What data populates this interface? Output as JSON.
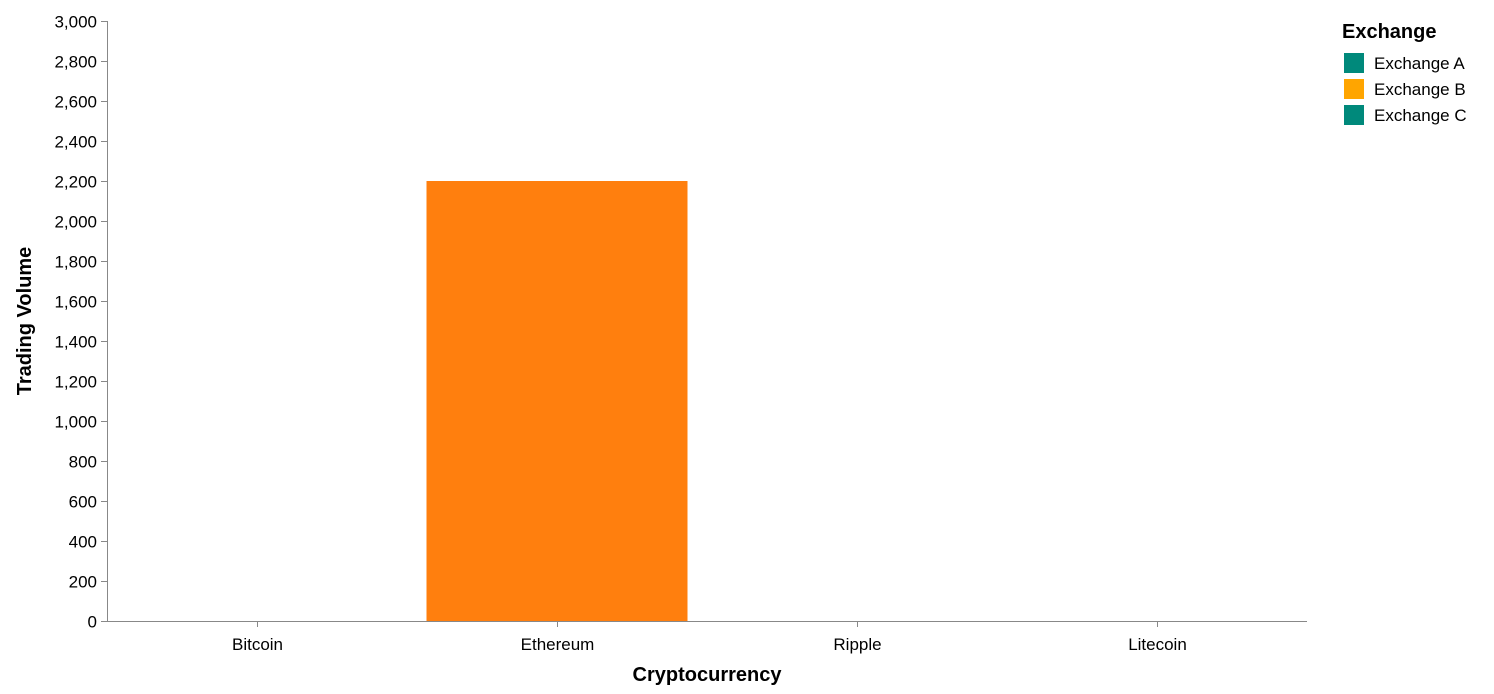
{
  "chart_data": {
    "type": "bar",
    "title": "",
    "xlabel": "Cryptocurrency",
    "ylabel": "Trading Volume",
    "categories": [
      "Bitcoin",
      "Ethereum",
      "Ripple",
      "Litecoin"
    ],
    "ylim": [
      0,
      3000
    ],
    "yticks": [
      0,
      200,
      400,
      600,
      800,
      1000,
      1200,
      1400,
      1600,
      1800,
      2000,
      2200,
      2400,
      2600,
      2800,
      3000
    ],
    "ytick_labels": [
      "0",
      "200",
      "400",
      "600",
      "800",
      "1,000",
      "1,200",
      "1,400",
      "1,600",
      "1,800",
      "2,000",
      "2,200",
      "2,400",
      "2,600",
      "2,800",
      "3,000"
    ],
    "bars": [
      {
        "category": "Ethereum",
        "value": 2200,
        "color": "#ff7f0e"
      }
    ],
    "grid": false,
    "legend": {
      "title": "Exchange",
      "placement": "top-right",
      "entries": [
        {
          "label": "Exchange A",
          "color": "#00897b"
        },
        {
          "label": "Exchange B",
          "color": "#ffa500"
        },
        {
          "label": "Exchange C",
          "color": "#00897b"
        }
      ]
    }
  }
}
